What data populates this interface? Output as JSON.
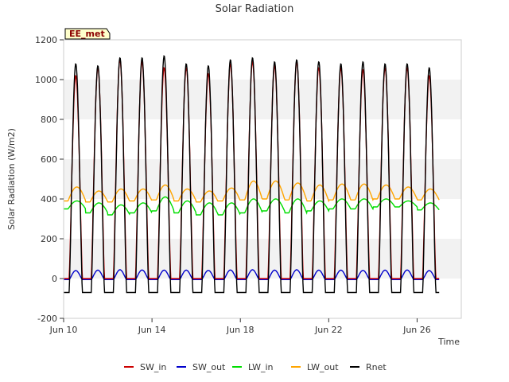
{
  "chart_data": {
    "type": "line",
    "title": "Solar Radiation",
    "xlabel": "Time",
    "ylabel": "Solar Radiation (W/m2)",
    "station_label": "EE_met",
    "x_start": "Jun 10",
    "x_end": "Jun 27",
    "xlim": [
      "Jun 10",
      "Jun 28"
    ],
    "ylim": [
      -200,
      1200
    ],
    "x_ticks": [
      "Jun 10",
      "Jun 14",
      "Jun 18",
      "Jun 22",
      "Jun 26"
    ],
    "y_ticks": [
      -200,
      0,
      200,
      400,
      600,
      800,
      1000,
      1200
    ],
    "grid": "horizontal alternating bands",
    "legend_position": "bottom",
    "days": [
      "Jun 10",
      "Jun 11",
      "Jun 12",
      "Jun 13",
      "Jun 14",
      "Jun 15",
      "Jun 16",
      "Jun 17",
      "Jun 18",
      "Jun 19",
      "Jun 20",
      "Jun 21",
      "Jun 22",
      "Jun 23",
      "Jun 24",
      "Jun 25",
      "Jun 26"
    ],
    "series": [
      {
        "name": "SW_in",
        "color": "#cc0000",
        "night_value": 0,
        "daily_peak": [
          1020,
          1060,
          1100,
          1090,
          1060,
          1060,
          1030,
          1080,
          1090,
          1070,
          1090,
          1060,
          1060,
          1050,
          1060,
          1060,
          1020
        ]
      },
      {
        "name": "SW_out",
        "color": "#0000cc",
        "night_value": -5,
        "daily_peak": [
          40,
          42,
          44,
          43,
          42,
          42,
          41,
          43,
          44,
          42,
          44,
          42,
          42,
          41,
          42,
          43,
          40
        ]
      },
      {
        "name": "LW_in",
        "color": "#00dd00",
        "daily_min": [
          350,
          330,
          320,
          330,
          340,
          330,
          320,
          320,
          330,
          340,
          330,
          340,
          350,
          350,
          360,
          360,
          345
        ],
        "daily_max": [
          390,
          380,
          370,
          380,
          410,
          390,
          380,
          380,
          400,
          400,
          400,
          390,
          400,
          400,
          400,
          390,
          380
        ]
      },
      {
        "name": "LW_out",
        "color": "#ffa500",
        "daily_min": [
          390,
          385,
          385,
          390,
          395,
          390,
          385,
          390,
          395,
          400,
          395,
          390,
          395,
          395,
          400,
          400,
          395
        ],
        "daily_max": [
          460,
          440,
          450,
          450,
          470,
          450,
          440,
          455,
          490,
          490,
          480,
          470,
          475,
          475,
          470,
          460,
          450
        ]
      },
      {
        "name": "Rnet",
        "color": "#000000",
        "night_value": -70,
        "daily_peak": [
          1080,
          1070,
          1110,
          1110,
          1120,
          1080,
          1070,
          1100,
          1110,
          1090,
          1100,
          1090,
          1080,
          1090,
          1080,
          1080,
          1060
        ]
      }
    ]
  }
}
